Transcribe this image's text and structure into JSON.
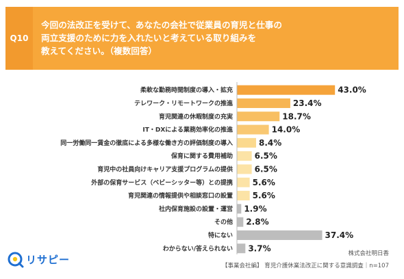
{
  "question": {
    "number": "Q10",
    "lines": [
      "今回の法改正を受けて、あなたの会社で従業員の育児と仕事の",
      "両立支援のために力を入れたいと考えている取り組みを",
      "教えてください。（複数回答）"
    ]
  },
  "chart_data": {
    "type": "bar",
    "orientation": "horizontal",
    "categories": [
      "柔軟な勤務時間制度の導入・拡充",
      "テレワーク・リモートワークの推進",
      "育児関連の休暇制度の充実",
      "IT・DXによる業務効率化の推進",
      "同一労働同一賃金の徹底による多様な働き方の評価制度の導入",
      "保育に関する費用補助",
      "育児中の社員向けキャリア支援プログラムの提供",
      "外部の保育サービス（ベビーシッター等）との提携",
      "育児関連の情報提供や相談窓口の設置",
      "社内保育施設の設置・運営",
      "その他",
      "特にない",
      "わからない/答えられない"
    ],
    "values": [
      43.0,
      23.4,
      18.7,
      14.0,
      8.4,
      6.5,
      6.5,
      5.6,
      5.6,
      1.9,
      2.8,
      37.4,
      3.7
    ],
    "value_labels": [
      "43.0%",
      "23.4%",
      "18.7%",
      "14.0%",
      "8.4%",
      "6.5%",
      "6.5%",
      "5.6%",
      "5.6%",
      "1.9%",
      "2.8%",
      "37.4%",
      "3.7%"
    ],
    "bar_colors": [
      "#f5a33a",
      "#f7b553",
      "#f8bf62",
      "#f9c872",
      "#fbd98e",
      "#fce3a6",
      "#fce3a6",
      "#fce3a6",
      "#fce3a6",
      "#bdbdbd",
      "#bdbdbd",
      "#bdbdbd",
      "#bdbdbd"
    ],
    "xlim": [
      0,
      50
    ],
    "grid": false
  },
  "footer": {
    "company": "株式会社明日香",
    "source": "【事業会社編】 育児介護休業法改正に関する意識調査｜n=107"
  },
  "logo": {
    "text": "リサピー"
  },
  "colors": {
    "header_dark": "#f29a2e",
    "header_light": "#f7a73a",
    "logo_blue": "#1f6fd1",
    "logo_yellow": "#f5c518"
  }
}
